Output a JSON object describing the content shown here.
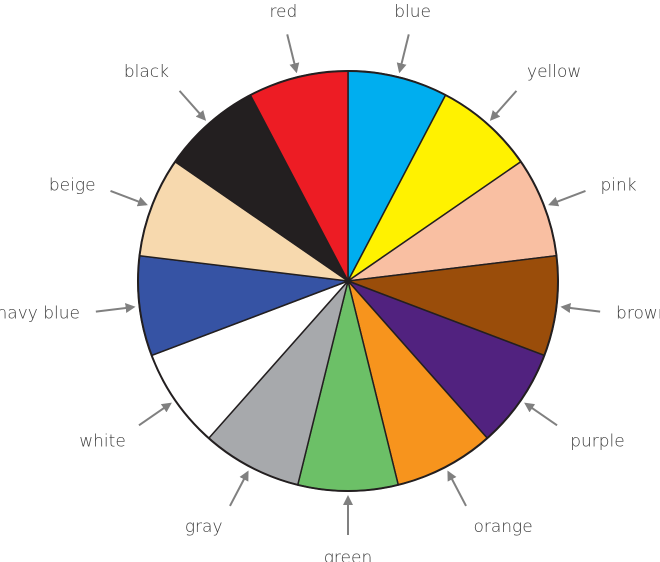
{
  "segments": [
    {
      "label": "blue",
      "color": "#00AEEF"
    },
    {
      "label": "yellow",
      "color": "#FFF200"
    },
    {
      "label": "pink",
      "color": "#F9BFA2"
    },
    {
      "label": "brown",
      "color": "#9A4D0A"
    },
    {
      "label": "purple",
      "color": "#51227F"
    },
    {
      "label": "orange",
      "color": "#F7941D"
    },
    {
      "label": "green",
      "color": "#6CC067"
    },
    {
      "label": "gray",
      "color": "#A7A9AC"
    },
    {
      "label": "white",
      "color": "#FFFFFF"
    },
    {
      "label": "navy blue",
      "color": "#3653A4"
    },
    {
      "label": "beige",
      "color": "#F7D9AE"
    },
    {
      "label": "black",
      "color": "#231F20"
    },
    {
      "label": "red",
      "color": "#ED1C24"
    }
  ],
  "arrow_color": "#808080",
  "outline_color": "#231F20"
}
